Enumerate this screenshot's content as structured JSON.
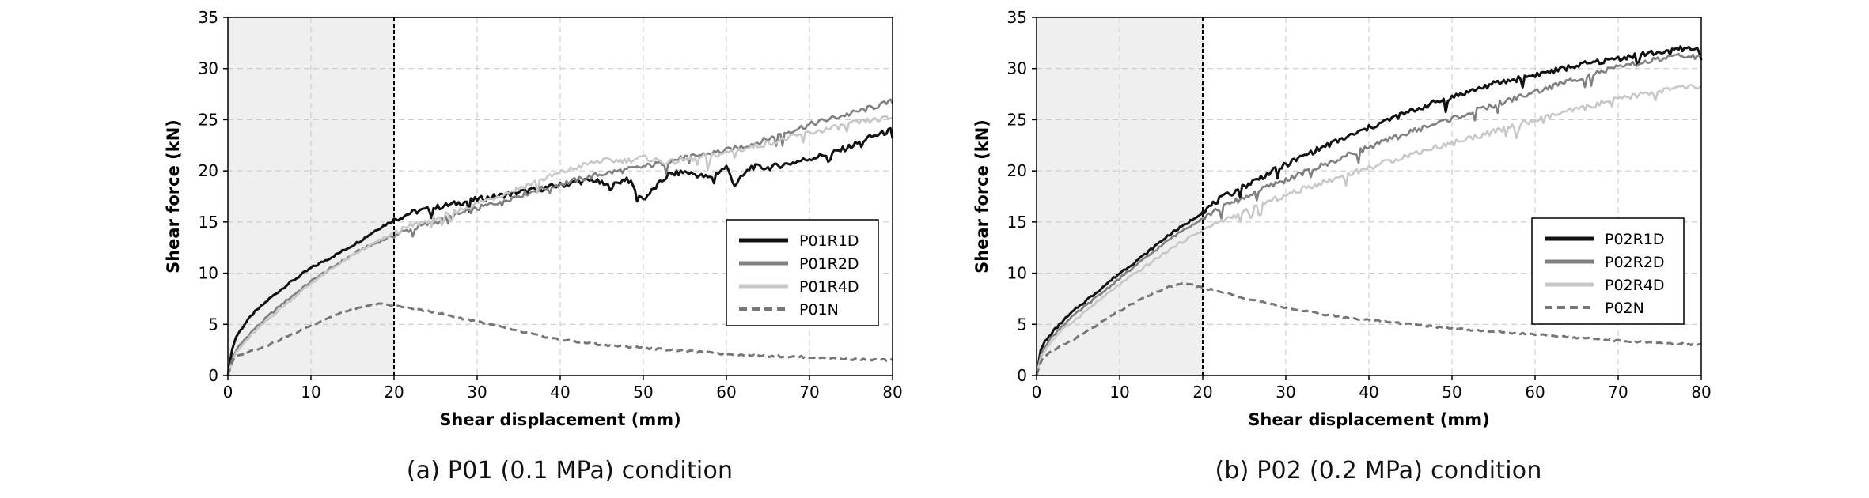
{
  "chart_data": [
    {
      "type": "line",
      "caption": "(a) P01 (0.1 MPa) condition",
      "xlabel": "Shear displacement (mm)",
      "ylabel": "Shear force (kN)",
      "xlim": [
        0,
        80
      ],
      "ylim": [
        0,
        35
      ],
      "xticks": [
        0,
        10,
        20,
        30,
        40,
        50,
        60,
        70,
        80
      ],
      "yticks": [
        0,
        5,
        10,
        15,
        20,
        25,
        30,
        35
      ],
      "grid": true,
      "shaded_region_x": [
        0,
        20
      ],
      "vertical_marker_x": 20,
      "legend_position": "right",
      "series": [
        {
          "name": "P01R1D",
          "color": "#111111",
          "style": "solid",
          "x": [
            0,
            0.5,
            1,
            2,
            3,
            5,
            7,
            10,
            13,
            16,
            18,
            20,
            22,
            25,
            28,
            30,
            33,
            35,
            38,
            40,
            42,
            44,
            46,
            48,
            50,
            53,
            55,
            58,
            60,
            61,
            63,
            65,
            68,
            70,
            73,
            75,
            77,
            80
          ],
          "y": [
            0,
            2.5,
            3.8,
            5.0,
            6.0,
            7.5,
            8.8,
            10.5,
            11.8,
            13.2,
            14.3,
            15.2,
            15.9,
            16.4,
            16.9,
            17.2,
            17.6,
            17.9,
            18.3,
            18.6,
            18.9,
            19.1,
            18.4,
            19.3,
            17.2,
            19.6,
            19.9,
            19.3,
            20.4,
            18.6,
            20.4,
            20.3,
            20.8,
            21.2,
            21.8,
            22.4,
            23.2,
            24.0
          ]
        },
        {
          "name": "P01R2D",
          "color": "#808080",
          "style": "solid",
          "x": [
            0,
            0.5,
            1,
            2,
            3,
            5,
            7,
            10,
            13,
            16,
            18,
            20,
            22,
            25,
            28,
            30,
            33,
            35,
            38,
            40,
            43,
            45,
            48,
            50,
            53,
            55,
            58,
            60,
            63,
            65,
            68,
            70,
            73,
            75,
            78,
            80
          ],
          "y": [
            0,
            1.5,
            2.5,
            3.5,
            4.4,
            5.9,
            7.3,
            9.2,
            10.8,
            12.3,
            13.0,
            13.7,
            14.3,
            15.0,
            15.8,
            16.3,
            17.1,
            17.6,
            18.3,
            18.7,
            19.3,
            19.7,
            20.1,
            20.4,
            20.9,
            21.3,
            21.7,
            22.0,
            22.6,
            23.1,
            24.0,
            24.5,
            25.2,
            25.6,
            26.3,
            26.8
          ]
        },
        {
          "name": "P01R4D",
          "color": "#c8c8c8",
          "style": "solid",
          "x": [
            0,
            0.5,
            1,
            2,
            3,
            5,
            7,
            10,
            13,
            16,
            18,
            20,
            22,
            25,
            28,
            30,
            33,
            35,
            38,
            40,
            43,
            45,
            48,
            50,
            53,
            55,
            58,
            60,
            63,
            65,
            68,
            70,
            73,
            75,
            78,
            80
          ],
          "y": [
            0,
            1.3,
            2.2,
            3.2,
            4.1,
            5.6,
            7.0,
            9.0,
            10.7,
            12.2,
            13.1,
            13.9,
            14.6,
            15.4,
            16.2,
            16.8,
            17.7,
            18.3,
            19.2,
            19.8,
            20.6,
            21.0,
            21.0,
            21.3,
            20.8,
            21.1,
            21.4,
            21.8,
            22.3,
            22.7,
            23.3,
            23.7,
            24.2,
            24.6,
            25.0,
            25.2
          ]
        },
        {
          "name": "P01N",
          "color": "#777777",
          "style": "dashed",
          "x": [
            0,
            0.5,
            1,
            2,
            4,
            6,
            8,
            10,
            12,
            14,
            16,
            18,
            20,
            22,
            24,
            26,
            28,
            30,
            35,
            40,
            45,
            50,
            55,
            60,
            65,
            70,
            75,
            80
          ],
          "y": [
            0,
            1.3,
            1.8,
            2.2,
            2.7,
            3.4,
            4.1,
            4.9,
            5.6,
            6.2,
            6.6,
            7.0,
            6.8,
            6.6,
            6.3,
            6.0,
            5.6,
            5.3,
            4.3,
            3.5,
            3.0,
            2.7,
            2.4,
            2.1,
            1.9,
            1.8,
            1.6,
            1.5
          ]
        }
      ]
    },
    {
      "type": "line",
      "caption": "(b) P02 (0.2 MPa) condition",
      "xlabel": "Shear displacement (mm)",
      "ylabel": "Shear force (kN)",
      "xlim": [
        0,
        80
      ],
      "ylim": [
        0,
        35
      ],
      "xticks": [
        0,
        10,
        20,
        30,
        40,
        50,
        60,
        70,
        80
      ],
      "yticks": [
        0,
        5,
        10,
        15,
        20,
        25,
        30,
        35
      ],
      "grid": true,
      "shaded_region_x": [
        0,
        20
      ],
      "vertical_marker_x": 20,
      "legend_position": "right",
      "series": [
        {
          "name": "P02R1D",
          "color": "#111111",
          "style": "solid",
          "x": [
            0,
            0.5,
            1,
            2,
            3,
            5,
            7,
            10,
            13,
            16,
            18,
            20,
            22,
            25,
            28,
            30,
            33,
            35,
            38,
            40,
            43,
            45,
            48,
            50,
            53,
            55,
            58,
            60,
            63,
            65,
            68,
            70,
            73,
            75,
            78,
            80
          ],
          "y": [
            0,
            2.5,
            3.3,
            4.3,
            5.2,
            6.7,
            8.0,
            10.0,
            11.8,
            13.8,
            14.8,
            16.0,
            17.2,
            18.5,
            19.8,
            20.6,
            21.8,
            22.5,
            23.5,
            24.2,
            25.2,
            25.8,
            26.7,
            27.2,
            28.0,
            28.5,
            29.0,
            29.4,
            29.9,
            30.3,
            30.7,
            31.0,
            31.4,
            31.6,
            32.0,
            31.8
          ]
        },
        {
          "name": "P02R2D",
          "color": "#808080",
          "style": "solid",
          "x": [
            0,
            0.5,
            1,
            2,
            3,
            5,
            7,
            10,
            13,
            16,
            18,
            20,
            22,
            25,
            28,
            30,
            33,
            35,
            38,
            40,
            43,
            45,
            48,
            50,
            53,
            55,
            58,
            60,
            63,
            65,
            68,
            70,
            73,
            75,
            78,
            80
          ],
          "y": [
            0,
            2.0,
            2.9,
            3.9,
            4.8,
            6.2,
            7.5,
            9.5,
            11.4,
            13.3,
            14.4,
            15.4,
            16.3,
            17.4,
            18.5,
            19.1,
            20.1,
            20.7,
            21.7,
            22.3,
            23.2,
            23.8,
            24.6,
            25.1,
            25.9,
            26.4,
            27.2,
            27.7,
            28.5,
            29.0,
            29.7,
            30.1,
            30.6,
            30.9,
            31.3,
            31.0
          ]
        },
        {
          "name": "P02R4D",
          "color": "#c8c8c8",
          "style": "solid",
          "x": [
            0,
            0.5,
            1,
            2,
            3,
            5,
            7,
            10,
            13,
            16,
            18,
            20,
            22,
            25,
            28,
            30,
            33,
            35,
            38,
            40,
            43,
            45,
            48,
            50,
            53,
            55,
            58,
            60,
            63,
            65,
            68,
            70,
            73,
            75,
            78,
            80
          ],
          "y": [
            0,
            1.7,
            2.5,
            3.5,
            4.4,
            5.7,
            7.0,
            8.9,
            10.6,
            12.3,
            13.3,
            14.2,
            15.0,
            16.0,
            17.0,
            17.6,
            18.5,
            19.0,
            19.8,
            20.3,
            21.1,
            21.6,
            22.3,
            22.7,
            23.4,
            23.8,
            24.5,
            24.9,
            25.6,
            26.0,
            26.6,
            27.0,
            27.5,
            27.8,
            28.2,
            28.2
          ]
        },
        {
          "name": "P02N",
          "color": "#777777",
          "style": "dashed",
          "x": [
            0,
            0.5,
            1,
            2,
            4,
            6,
            8,
            10,
            12,
            14,
            16,
            18,
            20,
            22,
            24,
            26,
            28,
            30,
            35,
            40,
            45,
            50,
            55,
            60,
            65,
            70,
            75,
            80
          ],
          "y": [
            0,
            1.3,
            1.9,
            2.5,
            3.3,
            4.3,
            5.3,
            6.3,
            7.2,
            8.0,
            8.7,
            9.0,
            8.6,
            8.2,
            7.8,
            7.4,
            7.0,
            6.6,
            5.9,
            5.4,
            5.0,
            4.6,
            4.3,
            4.0,
            3.7,
            3.4,
            3.2,
            3.0
          ]
        }
      ]
    }
  ]
}
